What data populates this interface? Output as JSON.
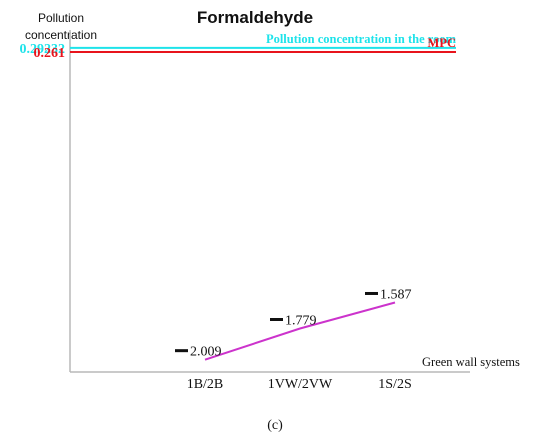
{
  "chart_data": {
    "type": "line",
    "title": "Formaldehyde",
    "ylabel": "Pollution concentration",
    "xlabel": "Green wall systems",
    "ylim": [
      -2.1,
      0.3
    ],
    "reference_lines": [
      {
        "label": "Pollution concentration in the room",
        "value": 0.29232,
        "value_label": "0.29232",
        "color": "#1ee3ea"
      },
      {
        "label": "MPC",
        "value": 0.261,
        "value_label": "0.261",
        "color": "#e8141c"
      }
    ],
    "categories": [
      "1B/2B",
      "1VW/2VW",
      "1S/2S"
    ],
    "series": [
      {
        "values": [
          -2.009,
          -1.779,
          -1.587
        ],
        "value_labels": [
          "2.009",
          "1.779",
          "1.587"
        ],
        "color": "#cc33cc"
      }
    ]
  },
  "caption": "(c)"
}
